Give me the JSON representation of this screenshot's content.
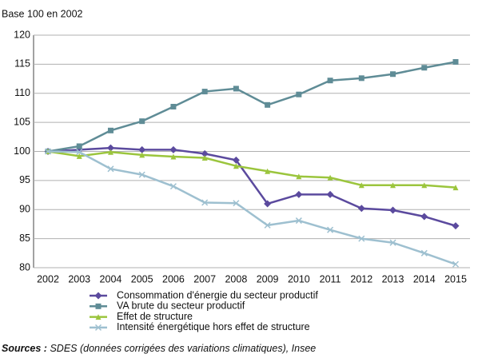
{
  "chart_data": {
    "type": "line",
    "ylabel": "Base 100 en 2002",
    "categories": [
      "2002",
      "2003",
      "2004",
      "2005",
      "2006",
      "2007",
      "2008",
      "2009",
      "2010",
      "2011",
      "2012",
      "2013",
      "2014",
      "2015"
    ],
    "series": [
      {
        "name": "Consommation d'énergie du secteur productif",
        "color": "#5b4a9e",
        "marker": "diamond",
        "values": [
          100,
          100.3,
          100.6,
          100.3,
          100.3,
          99.6,
          98.5,
          91,
          92.6,
          92.6,
          90.2,
          89.9,
          88.8,
          87.2
        ]
      },
      {
        "name": "VA brute du secteur productif",
        "color": "#5f8c96",
        "marker": "square",
        "values": [
          100,
          100.9,
          103.6,
          105.2,
          107.7,
          110.3,
          110.8,
          108,
          109.8,
          112.2,
          112.6,
          113.3,
          114.4,
          115.4
        ]
      },
      {
        "name": "Effet de structure",
        "color": "#9bc53d",
        "marker": "triangle",
        "values": [
          100,
          99.2,
          99.9,
          99.4,
          99.1,
          98.9,
          97.5,
          96.6,
          95.7,
          95.5,
          94.2,
          94.2,
          94.2,
          93.8
        ]
      },
      {
        "name": "Intensité énergétique hors effet de structure",
        "color": "#9ec0d0",
        "marker": "x",
        "values": [
          100,
          99.9,
          97,
          96,
          94,
          91.2,
          91.1,
          87.3,
          88.1,
          86.5,
          85,
          84.3,
          82.5,
          80.6
        ]
      }
    ],
    "ylim": [
      80,
      120
    ],
    "yticks": [
      80,
      85,
      90,
      95,
      100,
      105,
      110,
      115,
      120
    ],
    "grid": true,
    "source_label": "Sources :",
    "source_text": "SDES (données corrigées des variations climatiques), Insee"
  }
}
